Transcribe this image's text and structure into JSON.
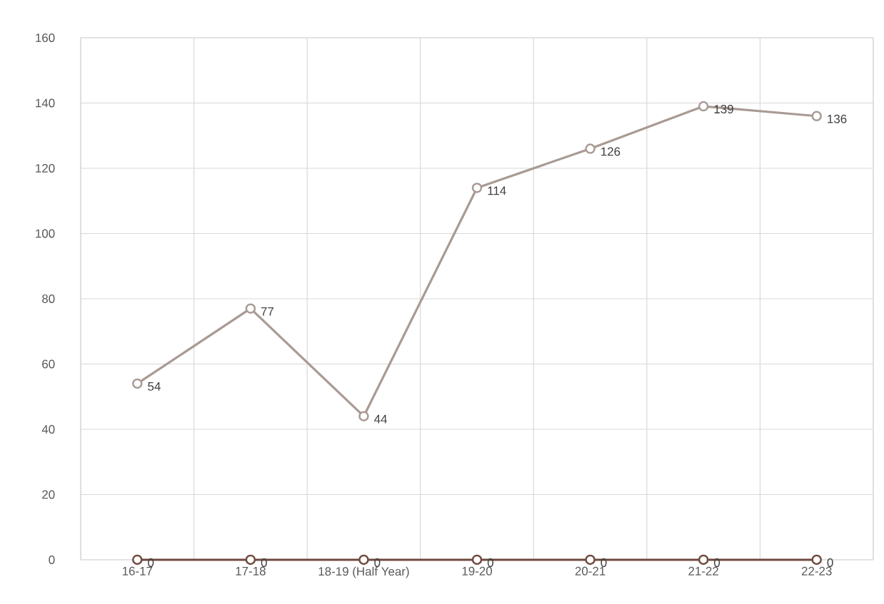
{
  "chart_data": {
    "type": "line",
    "categories": [
      "16-17",
      "17-18",
      "18-19 (Half Year)",
      "19-20",
      "20-21",
      "21-22",
      "22-23"
    ],
    "series": [
      {
        "color": "#a99a94",
        "values": [
          54,
          77,
          44,
          114,
          126,
          139,
          136
        ]
      },
      {
        "color": "#6f4b3f",
        "values": [
          0,
          0,
          0,
          0,
          0,
          0,
          0
        ]
      }
    ],
    "ylim": [
      0,
      160
    ],
    "yticks": [
      0,
      20,
      40,
      60,
      80,
      100,
      120,
      140,
      160
    ],
    "grid": true,
    "marker": "circle",
    "line_style": "solid",
    "data_labels": true
  }
}
